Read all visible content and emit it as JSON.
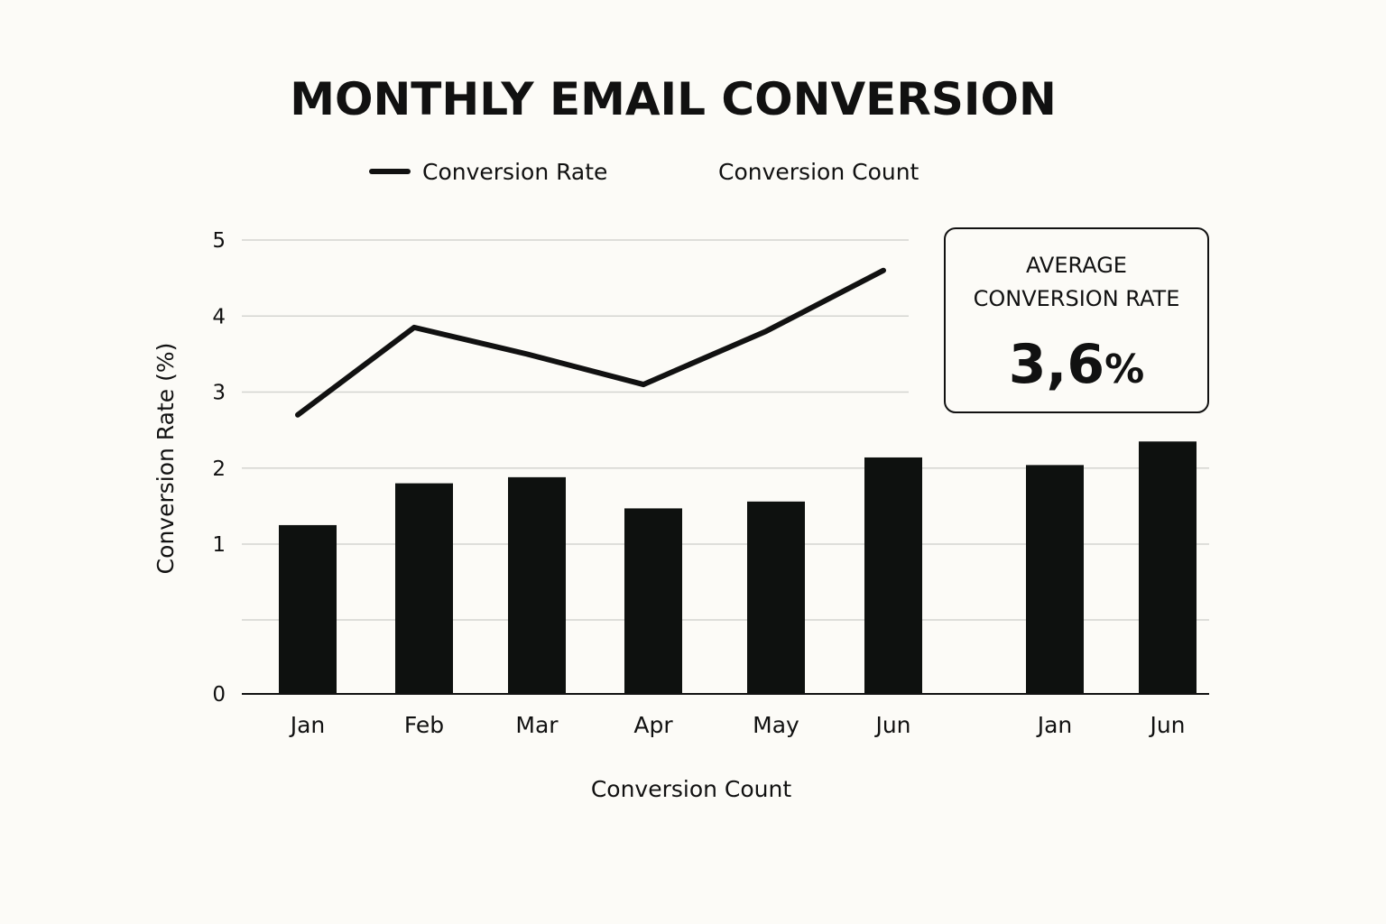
{
  "chart_data": {
    "type": "bar",
    "title": "MONTHLY EMAIL CONVERSION",
    "legend": [
      {
        "label": "Conversion Rate",
        "marker": "line"
      },
      {
        "label": "Conversion Count",
        "marker": "none"
      }
    ],
    "legend_position": "top-center",
    "ylabel": "Conversion Rate (%)",
    "xlabel": "Conversion Count",
    "yticks": [
      "5",
      "4",
      "3",
      "2",
      "1",
      "0"
    ],
    "ylim": [
      0,
      5
    ],
    "grid": true,
    "categories": [
      "Jan",
      "Feb",
      "Mar",
      "Apr",
      "May",
      "Jun",
      "Jan",
      "Jun"
    ],
    "series": [
      {
        "name": "Conversion Rate",
        "type": "line",
        "x": [
          "Jan",
          "Feb",
          "Mar",
          "Apr",
          "May",
          "Jun"
        ],
        "values": [
          2.7,
          3.85,
          3.5,
          3.1,
          3.8,
          4.6
        ]
      },
      {
        "name": "Conversion Count",
        "type": "bar",
        "values": [
          1.25,
          1.8,
          1.88,
          1.47,
          1.56,
          2.14,
          2.04,
          2.35
        ]
      }
    ],
    "callout": {
      "label_line1": "AVERAGE",
      "label_line2": "CONVERSION RATE",
      "value": "3,6",
      "unit": "%"
    }
  },
  "colors": {
    "background": "#fcfbf7",
    "ink": "#111111",
    "bar": "#0e110f",
    "grid": "#d4d4d0"
  }
}
